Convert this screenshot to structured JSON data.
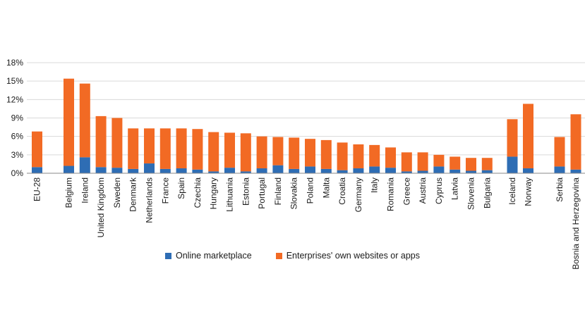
{
  "colors": {
    "online": "#2e6db4",
    "own": "#f26a24",
    "grid": "#d9d9d9",
    "axis": "#888888"
  },
  "legend": {
    "online_label": "Online marketplace",
    "own_label": "Enterprises' own websites or apps"
  },
  "chart_data": {
    "type": "bar",
    "stacked": true,
    "title": "",
    "xlabel": "",
    "ylabel": "",
    "ylim": [
      0,
      18
    ],
    "yticks": [
      "0%",
      "3%",
      "6%",
      "9%",
      "12%",
      "15%",
      "18%"
    ],
    "grid": true,
    "legend_position": "bottom",
    "categories": [
      "EU-28",
      "Belgium",
      "Ireland",
      "United Kingdom",
      "Sweden",
      "Denmark",
      "Netherlands",
      "France",
      "Spain",
      "Czechia",
      "Hungary",
      "Lithuania",
      "Estonia",
      "Portugal",
      "Finland",
      "Slovakia",
      "Poland",
      "Malta",
      "Croatia",
      "Germany",
      "Italy",
      "Romania",
      "Greece",
      "Austria",
      "Cyprus",
      "Latvia",
      "Slovenia",
      "Bulgaria",
      "Iceland",
      "Norway",
      "Serbia",
      "Bosnia and Herzegovina"
    ],
    "series": [
      {
        "name": "Online marketplace",
        "values": [
          1.0,
          1.2,
          2.6,
          1.0,
          0.9,
          0.7,
          1.6,
          0.7,
          0.8,
          0.6,
          0.3,
          0.9,
          0.3,
          0.8,
          1.3,
          0.7,
          1.1,
          0.7,
          0.5,
          0.8,
          1.1,
          0.9,
          0.3,
          0.4,
          1.1,
          0.6,
          0.4,
          0.5,
          2.7,
          0.8,
          1.1,
          0.6
        ]
      },
      {
        "name": "Enterprises' own websites or apps",
        "values": [
          5.8,
          14.2,
          12.0,
          8.3,
          8.1,
          6.6,
          5.7,
          6.6,
          6.5,
          6.6,
          6.4,
          5.7,
          6.2,
          5.2,
          4.6,
          5.1,
          4.5,
          4.7,
          4.5,
          3.9,
          3.5,
          3.3,
          3.1,
          3.0,
          1.9,
          2.1,
          2.1,
          2.0,
          6.1,
          10.5,
          4.8,
          9.0
        ]
      }
    ]
  }
}
